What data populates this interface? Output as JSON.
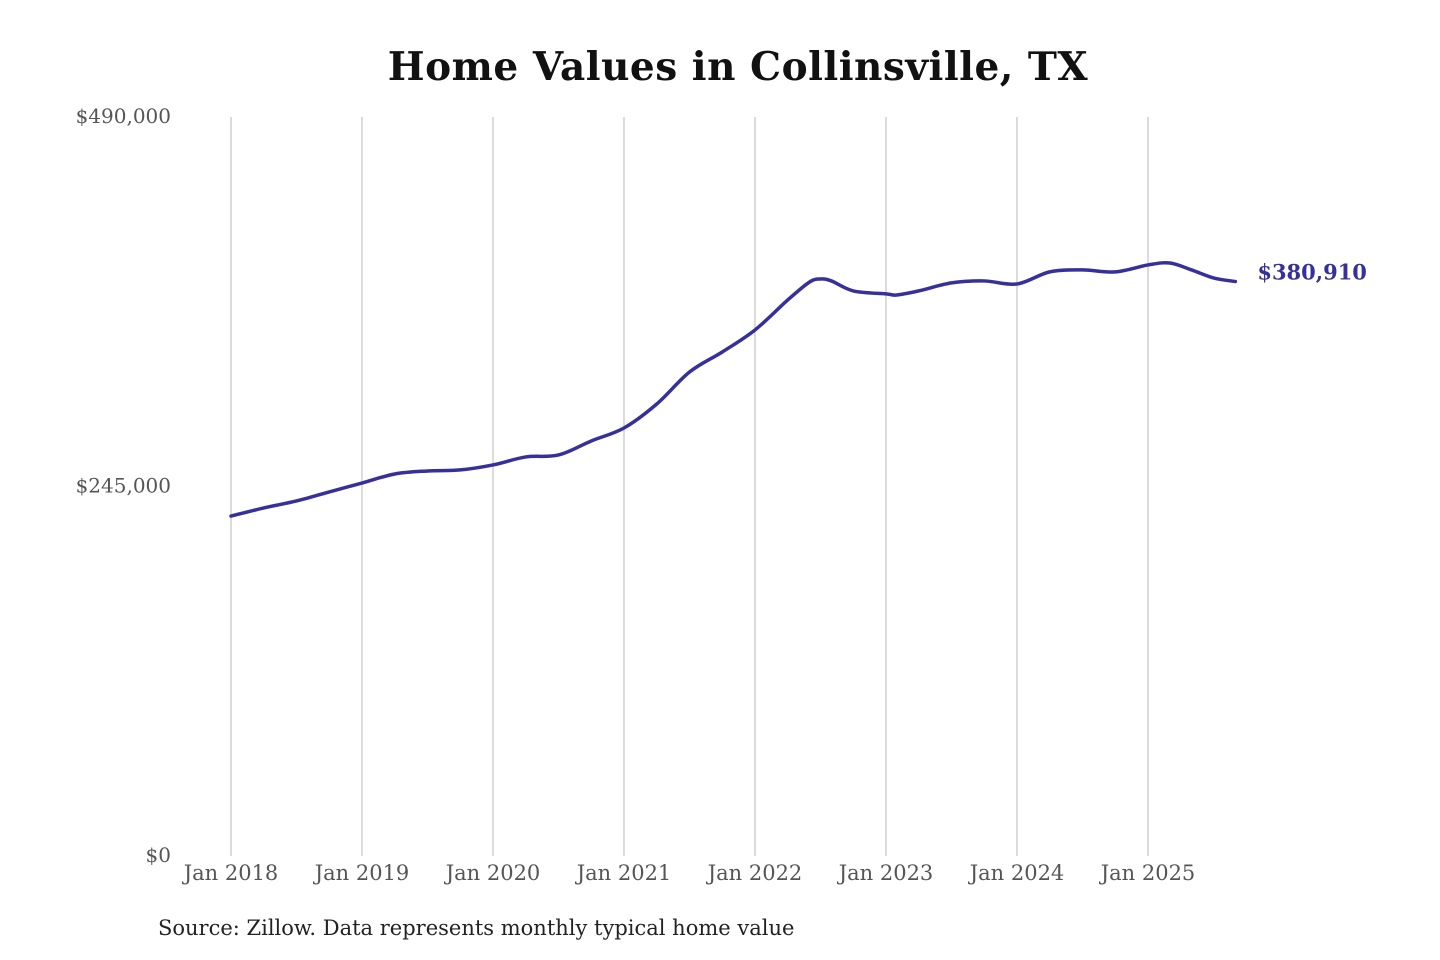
{
  "chart_data": {
    "type": "line",
    "title": "Home Values in Collinsville, TX",
    "source": "Source: Zillow. Data represents monthly typical home value",
    "xlabel": "",
    "ylabel": "",
    "ylim": [
      0,
      490000
    ],
    "y_ticks": [
      {
        "value": 0,
        "label": "$0"
      },
      {
        "value": 245000,
        "label": "$245,000"
      },
      {
        "value": 490000,
        "label": "$490,000"
      }
    ],
    "x_ticks": [
      {
        "date": "2018-01",
        "label": "Jan 2018"
      },
      {
        "date": "2019-01",
        "label": "Jan 2019"
      },
      {
        "date": "2020-01",
        "label": "Jan 2020"
      },
      {
        "date": "2021-01",
        "label": "Jan 2021"
      },
      {
        "date": "2022-01",
        "label": "Jan 2022"
      },
      {
        "date": "2023-01",
        "label": "Jan 2023"
      },
      {
        "date": "2024-01",
        "label": "Jan 2024"
      },
      {
        "date": "2025-01",
        "label": "Jan 2025"
      }
    ],
    "grid": "vertical",
    "line_color": "#36309a",
    "end_label": "$380,910",
    "series": [
      {
        "x": [
          "2018-01",
          "2018-04",
          "2018-07",
          "2018-10",
          "2019-01",
          "2019-04",
          "2019-07",
          "2019-10",
          "2020-01",
          "2020-04",
          "2020-07",
          "2020-10",
          "2021-01",
          "2021-04",
          "2021-07",
          "2021-10",
          "2022-01",
          "2022-04",
          "2022-06",
          "2022-07",
          "2022-08",
          "2022-10",
          "2023-01",
          "2023-02",
          "2023-04",
          "2023-07",
          "2023-10",
          "2024-01",
          "2024-04",
          "2024-07",
          "2024-10",
          "2025-01",
          "2025-03",
          "2025-05",
          "2025-07",
          "2025-09"
        ],
        "values": [
          225400,
          230800,
          235400,
          241400,
          247300,
          253300,
          255300,
          256000,
          259300,
          264600,
          265900,
          275200,
          283800,
          299700,
          320900,
          334200,
          348800,
          368700,
          380600,
          382600,
          381300,
          374700,
          372700,
          372000,
          374700,
          380000,
          381300,
          379300,
          387300,
          388600,
          387300,
          391900,
          393200,
          388600,
          383300,
          380910
        ]
      }
    ]
  }
}
